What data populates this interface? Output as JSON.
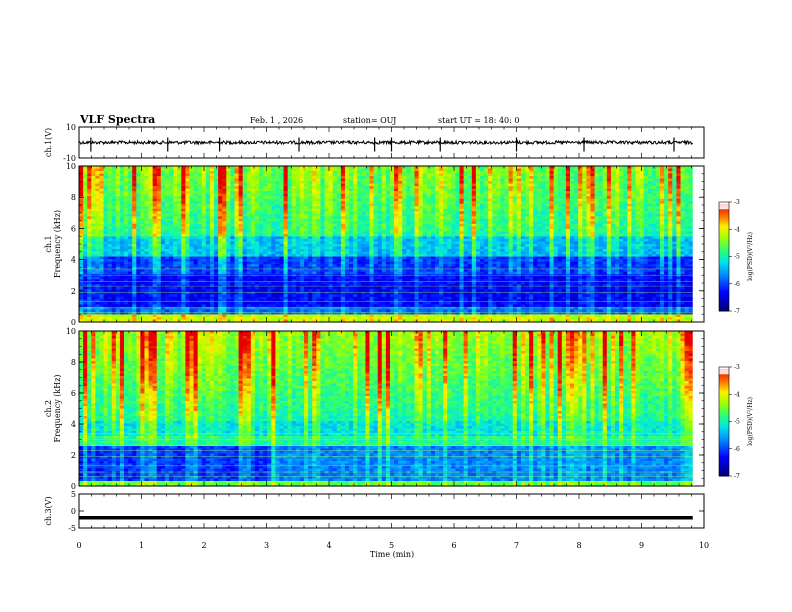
{
  "header": {
    "title": "VLF Spectra",
    "date": "Feb. 1 , 2026",
    "station": "station= OUJ",
    "start": "start  UT =   18: 40: 0"
  },
  "chart_data": [
    {
      "type": "line",
      "name": "ch1-waveform",
      "ylabel": "ch.1(V)",
      "ylim": [
        -10,
        10
      ],
      "yticks": [
        "10",
        "-10"
      ],
      "xlim": [
        0,
        10
      ],
      "baseline": 0,
      "spikes_min": [
        0.19,
        1.42,
        2.25,
        3.52,
        4.73,
        5.0,
        5.78,
        7.0,
        8.08,
        9.52
      ],
      "color": "#000000"
    },
    {
      "type": "heatmap",
      "name": "ch1-spectrogram",
      "ylabel_line1": "ch.1",
      "ylabel_line2": "Frequency  (kHz)",
      "ylim": [
        0,
        10
      ],
      "yticks": [
        "0",
        "2",
        "4",
        "6",
        "8",
        "10"
      ],
      "xlim": [
        0,
        10
      ],
      "data_end_min": 9.82,
      "colorbar": {
        "label": "log(PSD)(V²/Hz)",
        "range": [
          -7,
          -3
        ],
        "ticks": [
          "-3",
          "-4",
          "-5",
          "-6",
          "-7"
        ],
        "colors": [
          "#000080",
          "#0000ff",
          "#00c0ff",
          "#00ff80",
          "#ffff00",
          "#ff0000",
          "#ffffff"
        ]
      }
    },
    {
      "type": "heatmap",
      "name": "ch2-spectrogram",
      "ylabel_line1": "ch.2",
      "ylabel_line2": "Frequency  (kHz)",
      "ylim": [
        0,
        10
      ],
      "yticks": [
        "0",
        "2",
        "4",
        "6",
        "8",
        "10"
      ],
      "xlim": [
        0,
        10
      ],
      "data_end_min": 9.82,
      "colorbar": {
        "label": "log(PSD)(V²/Hz)",
        "range": [
          -7,
          -3
        ],
        "ticks": [
          "-3",
          "-4",
          "-5",
          "-6",
          "-7"
        ],
        "colors": [
          "#000080",
          "#0000ff",
          "#00c0ff",
          "#00ff80",
          "#ffff00",
          "#ff0000",
          "#ffffff"
        ]
      }
    },
    {
      "type": "line",
      "name": "ch3-waveform",
      "ylabel": "ch.3(V)",
      "ylim": [
        -5,
        5
      ],
      "yticks": [
        "5",
        "0",
        "-5"
      ],
      "xlim": [
        0,
        10
      ],
      "baseline": -2,
      "color": "#000000"
    }
  ],
  "x_axis": {
    "label": "Time  (min)",
    "ticks": [
      "0",
      "1",
      "2",
      "3",
      "4",
      "5",
      "6",
      "7",
      "8",
      "9",
      "10"
    ]
  }
}
